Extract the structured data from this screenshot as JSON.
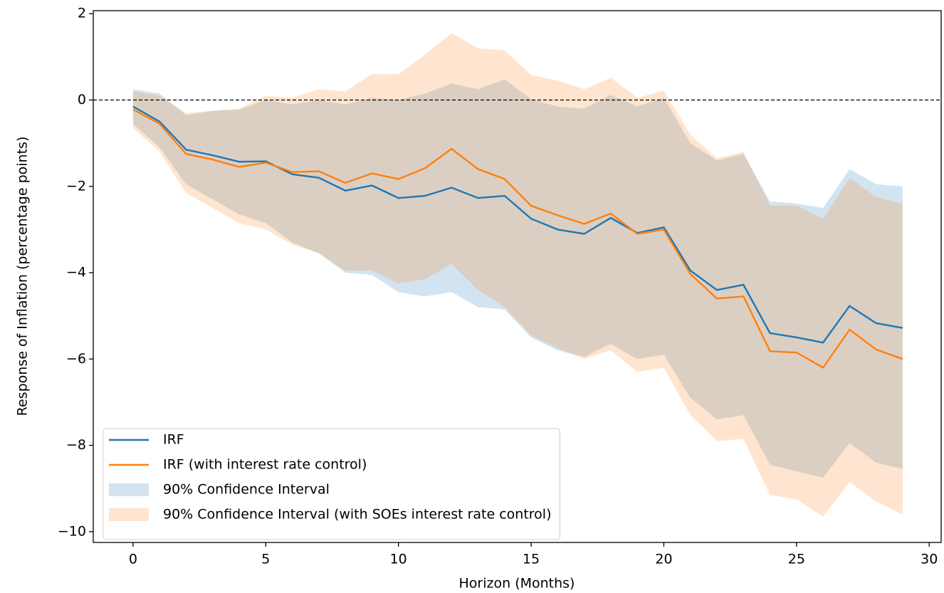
{
  "chart_data": {
    "type": "line",
    "xlabel": "Horizon (Months)",
    "ylabel": "Response of Inflation (percentage points)",
    "x": [
      0,
      1,
      2,
      3,
      4,
      5,
      6,
      7,
      8,
      9,
      10,
      11,
      12,
      13,
      14,
      15,
      16,
      17,
      18,
      19,
      20,
      21,
      22,
      23,
      24,
      25,
      26,
      27,
      28,
      29
    ],
    "series": [
      {
        "name": "IRF",
        "color": "#1f77b4",
        "values": [
          -0.15,
          -0.5,
          -1.15,
          -1.28,
          -1.43,
          -1.42,
          -1.72,
          -1.8,
          -2.1,
          -1.98,
          -2.27,
          -2.22,
          -2.03,
          -2.27,
          -2.22,
          -2.75,
          -3.0,
          -3.1,
          -2.73,
          -3.08,
          -2.95,
          -3.95,
          -4.4,
          -4.28,
          -5.4,
          -5.5,
          -5.62,
          -4.77,
          -5.17,
          -5.28
        ]
      },
      {
        "name": "IRF (with interest rate control)",
        "color": "#ff7f0e",
        "values": [
          -0.22,
          -0.55,
          -1.25,
          -1.38,
          -1.55,
          -1.45,
          -1.67,
          -1.65,
          -1.92,
          -1.7,
          -1.83,
          -1.58,
          -1.13,
          -1.6,
          -1.83,
          -2.45,
          -2.67,
          -2.87,
          -2.63,
          -3.1,
          -3.0,
          -4.03,
          -4.6,
          -4.55,
          -5.82,
          -5.85,
          -6.2,
          -5.32,
          -5.78,
          -6.0
        ]
      }
    ],
    "bands": [
      {
        "name": "90% Confidence Interval",
        "color": "#1f77b4",
        "lower": [
          -0.55,
          -1.1,
          -1.95,
          -2.3,
          -2.65,
          -2.85,
          -3.3,
          -3.55,
          -4.0,
          -4.05,
          -4.45,
          -4.55,
          -4.45,
          -4.8,
          -4.85,
          -5.5,
          -5.8,
          -5.95,
          -5.65,
          -6.0,
          -5.9,
          -6.9,
          -7.4,
          -7.3,
          -8.45,
          -8.6,
          -8.75,
          -7.95,
          -8.4,
          -8.55
        ],
        "upper": [
          0.25,
          0.15,
          -0.35,
          -0.25,
          -0.22,
          0.0,
          -0.1,
          0.0,
          -0.1,
          0.05,
          0.0,
          0.15,
          0.38,
          0.25,
          0.48,
          0.02,
          -0.15,
          -0.2,
          0.12,
          -0.15,
          0.05,
          -1.0,
          -1.4,
          -1.25,
          -2.35,
          -2.4,
          -2.5,
          -1.6,
          -1.95,
          -2.0
        ]
      },
      {
        "name": "90% Confidence Interval (with SOEs interest rate control)",
        "color": "#ff7f0e",
        "lower": [
          -0.65,
          -1.2,
          -2.15,
          -2.5,
          -2.85,
          -3.0,
          -3.35,
          -3.55,
          -3.95,
          -3.95,
          -4.25,
          -4.15,
          -3.8,
          -4.4,
          -4.8,
          -5.45,
          -5.75,
          -6.0,
          -5.8,
          -6.3,
          -6.2,
          -7.3,
          -7.9,
          -7.85,
          -9.15,
          -9.25,
          -9.65,
          -8.85,
          -9.3,
          -9.6
        ],
        "upper": [
          0.2,
          0.1,
          -0.3,
          -0.25,
          -0.2,
          0.1,
          0.05,
          0.25,
          0.2,
          0.6,
          0.6,
          1.05,
          1.55,
          1.2,
          1.15,
          0.58,
          0.45,
          0.25,
          0.52,
          0.05,
          0.22,
          -0.8,
          -1.35,
          -1.2,
          -2.45,
          -2.45,
          -2.75,
          -1.8,
          -2.25,
          -2.4
        ]
      }
    ],
    "reference_line": 0,
    "xlim": [
      -1.5,
      30.45
    ],
    "ylim": [
      -10.25,
      2.07
    ],
    "xticks": [
      0,
      5,
      10,
      15,
      20,
      25,
      30
    ],
    "yticks": [
      2,
      0,
      {
        "value": -2,
        "label": "−2"
      },
      {
        "value": -4,
        "label": "−4"
      },
      {
        "value": -6,
        "label": "−6"
      },
      {
        "value": -8,
        "label": "−8"
      },
      {
        "value": -10,
        "label": "−10"
      }
    ],
    "legend": "lower left"
  }
}
